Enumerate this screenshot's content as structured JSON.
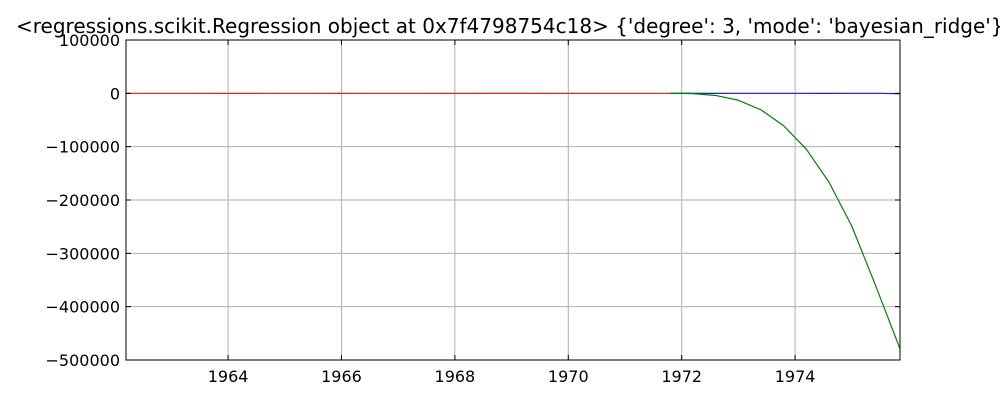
{
  "chart_data": {
    "type": "line",
    "title": "<regressions.scikit.Regression object at 0x7f4798754c18> {'degree': 3, 'mode': 'bayesian_ridge'}",
    "xlabel": "",
    "ylabel": "",
    "xlim": [
      1962.2,
      1975.85
    ],
    "ylim": [
      -500000,
      100000
    ],
    "grid": true,
    "x_ticks": [
      1964,
      1966,
      1968,
      1970,
      1972,
      1974
    ],
    "x_tick_labels": [
      "1964",
      "1966",
      "1968",
      "1970",
      "1972",
      "1974"
    ],
    "y_ticks": [
      100000,
      0,
      -100000,
      -200000,
      -300000,
      -400000,
      -500000
    ],
    "y_tick_labels": [
      "100000",
      "0",
      "−100000",
      "−200000",
      "−300000",
      "−400000",
      "−500000"
    ],
    "series": [
      {
        "color": "#d62728",
        "x": [
          1962.2,
          1963,
          1964,
          1965,
          1966,
          1967,
          1968,
          1969,
          1970,
          1971,
          1971.8
        ],
        "y": [
          0,
          50,
          -100,
          80,
          -50,
          60,
          -80,
          100,
          -40,
          70,
          0
        ]
      },
      {
        "color": "#1f1fbf",
        "x": [
          1971.8,
          1972,
          1972.5,
          1973,
          1973.5,
          1974,
          1974.5,
          1975,
          1975.5,
          1975.85
        ],
        "y": [
          0,
          100,
          -50,
          80,
          0,
          60,
          -40,
          50,
          0,
          -800
        ]
      },
      {
        "color": "#008000",
        "x": [
          1971.8,
          1972.2,
          1972.6,
          1973.0,
          1973.4,
          1973.8,
          1974.2,
          1974.6,
          1975.0,
          1975.4,
          1975.85
        ],
        "y": [
          0,
          -500,
          -4000,
          -13000,
          -31000,
          -61000,
          -105000,
          -167000,
          -249000,
          -355000,
          -479000
        ]
      }
    ]
  }
}
